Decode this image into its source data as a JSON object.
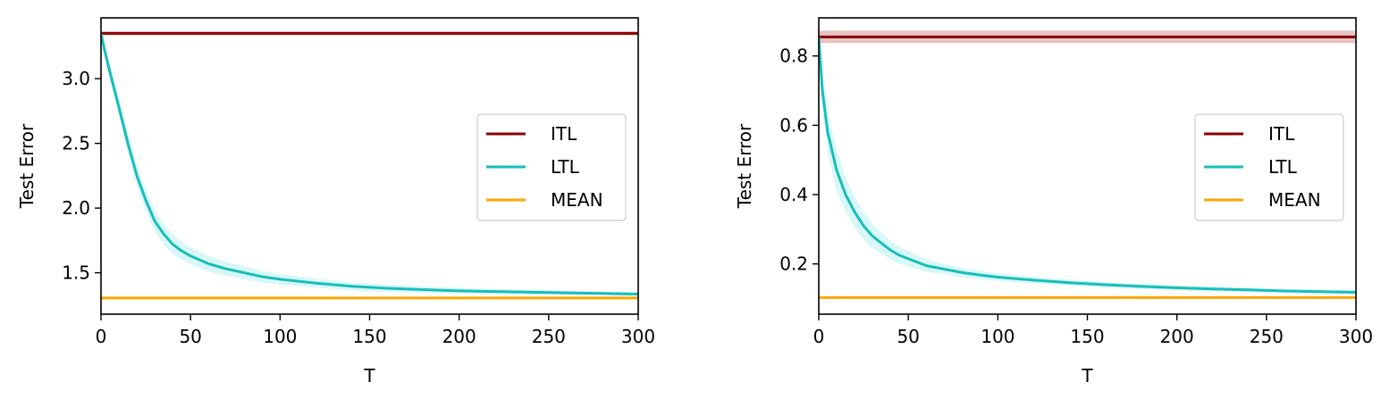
{
  "chart_data": [
    {
      "type": "line",
      "xlabel": "T",
      "ylabel": "Test Error",
      "xlim": [
        0,
        300
      ],
      "ylim": [
        1.18,
        3.47
      ],
      "xticks": [
        "0",
        "50",
        "100",
        "150",
        "200",
        "250",
        "300"
      ],
      "yticks": [
        "1.5",
        "2.0",
        "2.5",
        "3.0"
      ],
      "legend_position": "center-right",
      "grid": false,
      "series": [
        {
          "name": "ITL",
          "color": "#8b0000",
          "band_color": "#c77a7a",
          "x": [
            0,
            300
          ],
          "y": [
            3.35,
            3.35
          ],
          "band": 0.015
        },
        {
          "name": "LTL",
          "color": "#17bebb",
          "band_color": "#aaeeee",
          "x": [
            0,
            2,
            5,
            10,
            15,
            20,
            25,
            30,
            35,
            40,
            45,
            50,
            60,
            70,
            80,
            90,
            100,
            120,
            140,
            160,
            180,
            200,
            220,
            240,
            260,
            280,
            300
          ],
          "y": [
            3.35,
            3.22,
            3.05,
            2.78,
            2.5,
            2.25,
            2.06,
            1.9,
            1.8,
            1.72,
            1.67,
            1.63,
            1.57,
            1.53,
            1.5,
            1.47,
            1.45,
            1.42,
            1.395,
            1.38,
            1.37,
            1.36,
            1.355,
            1.35,
            1.345,
            1.34,
            1.335
          ],
          "band": [
            0.02,
            0.05,
            0.06,
            0.07,
            0.08,
            0.08,
            0.08,
            0.08,
            0.08,
            0.075,
            0.07,
            0.065,
            0.06,
            0.055,
            0.05,
            0.045,
            0.04,
            0.035,
            0.03,
            0.028,
            0.025,
            0.022,
            0.02,
            0.018,
            0.016,
            0.015,
            0.015
          ]
        },
        {
          "name": "MEAN",
          "color": "#ffa500",
          "band_color": "#ffd27f",
          "x": [
            0,
            300
          ],
          "y": [
            1.305,
            1.305
          ],
          "band": 0.004
        }
      ]
    },
    {
      "type": "line",
      "xlabel": "T",
      "ylabel": "Test Error",
      "xlim": [
        0,
        300
      ],
      "ylim": [
        0.055,
        0.91
      ],
      "xticks": [
        "0",
        "50",
        "100",
        "150",
        "200",
        "250",
        "300"
      ],
      "yticks": [
        "0.2",
        "0.4",
        "0.6",
        "0.8"
      ],
      "legend_position": "center-right",
      "grid": false,
      "series": [
        {
          "name": "ITL",
          "color": "#8b0000",
          "band_color": "#c77a7a",
          "x": [
            0,
            300
          ],
          "y": [
            0.855,
            0.855
          ],
          "band": 0.018
        },
        {
          "name": "LTL",
          "color": "#17bebb",
          "band_color": "#aaeeee",
          "x": [
            0,
            2,
            5,
            10,
            15,
            20,
            25,
            30,
            35,
            40,
            45,
            50,
            60,
            70,
            80,
            90,
            100,
            120,
            140,
            160,
            180,
            200,
            220,
            240,
            260,
            280,
            300
          ],
          "y": [
            0.855,
            0.7,
            0.58,
            0.47,
            0.4,
            0.35,
            0.31,
            0.28,
            0.26,
            0.24,
            0.225,
            0.215,
            0.195,
            0.185,
            0.175,
            0.168,
            0.162,
            0.153,
            0.146,
            0.14,
            0.135,
            0.131,
            0.128,
            0.125,
            0.122,
            0.12,
            0.118
          ],
          "band": [
            0.01,
            0.05,
            0.06,
            0.06,
            0.05,
            0.045,
            0.04,
            0.035,
            0.03,
            0.028,
            0.025,
            0.022,
            0.018,
            0.015,
            0.013,
            0.012,
            0.011,
            0.01,
            0.009,
            0.008,
            0.008,
            0.007,
            0.007,
            0.006,
            0.006,
            0.006,
            0.006
          ]
        },
        {
          "name": "MEAN",
          "color": "#ffa500",
          "band_color": "#ffd27f",
          "x": [
            0,
            300
          ],
          "y": [
            0.103,
            0.103
          ],
          "band": 0.002
        }
      ]
    }
  ]
}
